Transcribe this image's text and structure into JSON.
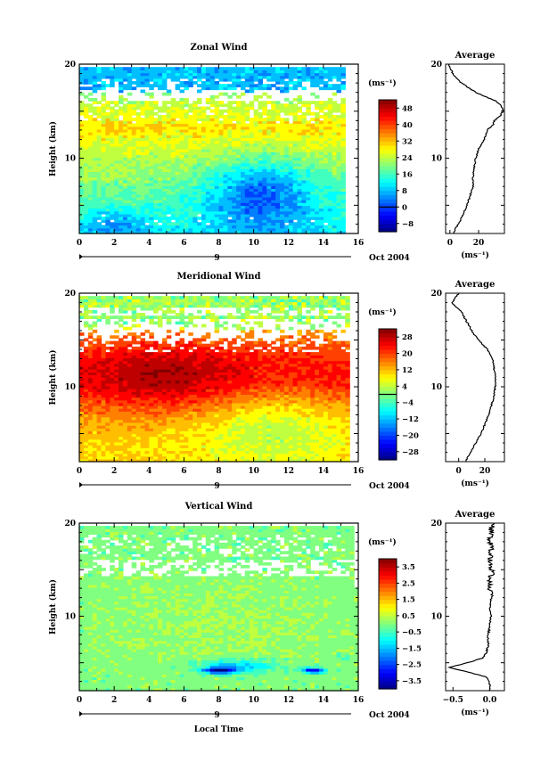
{
  "chart_data": [
    {
      "type": "heatmap",
      "title": "Zonal Wind",
      "xlabel": "",
      "ylabel": "Height (km)",
      "xlim": [
        0,
        16
      ],
      "ylim": [
        2,
        20
      ],
      "xticks": [
        0,
        2,
        4,
        6,
        8,
        10,
        12,
        14,
        16
      ],
      "yticks": [
        10,
        20
      ],
      "date_label": "Oct 2004",
      "date_day": "9",
      "colorbar": {
        "unit": "(ms⁻¹)",
        "levels": [
          -8,
          0,
          8,
          16,
          24,
          32,
          40,
          48
        ],
        "range": [
          -12,
          52
        ],
        "contour_level": 0
      },
      "profile": {
        "title": "Average",
        "xlabel": "(ms⁻¹)",
        "xlim": [
          -3,
          38
        ],
        "xticks": [
          0,
          20
        ],
        "height": [
          2,
          3,
          4,
          5,
          6,
          7,
          8,
          9,
          10,
          11,
          12,
          13,
          13.5,
          14,
          14.5,
          15,
          15.5,
          16,
          17,
          18,
          19,
          20
        ],
        "values": [
          2,
          6,
          9,
          12,
          14,
          16,
          16,
          17,
          18,
          20,
          24,
          26,
          30,
          31,
          35,
          37,
          36,
          33,
          18,
          8,
          2,
          -1
        ]
      }
    },
    {
      "type": "heatmap",
      "title": "Meridional Wind",
      "xlabel": "",
      "ylabel": "Height (km)",
      "xlim": [
        0,
        16
      ],
      "ylim": [
        2,
        20
      ],
      "xticks": [
        0,
        2,
        4,
        6,
        8,
        10,
        12,
        14,
        16
      ],
      "yticks": [
        10,
        20
      ],
      "date_label": "Oct 2004",
      "date_day": "9",
      "colorbar": {
        "unit": "(ms⁻¹)",
        "levels": [
          -28,
          -20,
          -12,
          -4,
          4,
          12,
          20,
          28
        ],
        "range": [
          -32,
          32
        ],
        "contour_level": 0
      },
      "profile": {
        "title": "Average",
        "xlabel": "(ms⁻¹)",
        "xlim": [
          -10,
          35
        ],
        "xticks": [
          0,
          20
        ],
        "height": [
          2,
          3,
          4,
          5,
          6,
          7,
          8,
          9,
          10,
          11,
          12,
          13,
          14,
          15,
          16,
          17,
          18,
          19,
          20
        ],
        "values": [
          5,
          9,
          13,
          17,
          20,
          23,
          25,
          27,
          28,
          28,
          27,
          26,
          22,
          15,
          10,
          6,
          2,
          -5,
          0
        ]
      }
    },
    {
      "type": "heatmap",
      "title": "Vertical Wind",
      "xlabel": "Local Time",
      "ylabel": "Height (km)",
      "xlim": [
        0,
        16
      ],
      "ylim": [
        2,
        20
      ],
      "xticks": [
        0,
        2,
        4,
        6,
        8,
        10,
        12,
        14,
        16
      ],
      "yticks": [
        10,
        20
      ],
      "date_label": "Oct 2004",
      "date_day": "9",
      "colorbar": {
        "unit": "(ms⁻¹)",
        "levels": [
          -3.5,
          -2.5,
          -1.5,
          -0.5,
          0.5,
          1.5,
          2.5,
          3.5
        ],
        "range": [
          -4,
          4
        ],
        "contour_level": null
      },
      "profile": {
        "title": "Average",
        "xlabel": "(ms⁻¹)",
        "xlim": [
          -0.6,
          0.2
        ],
        "xticks": [
          -0.5,
          0
        ],
        "xticklabels": [
          "−0.5",
          "0.0"
        ],
        "height": [
          2,
          3,
          3.5,
          4,
          4.5,
          5,
          5.5,
          6,
          7,
          8,
          9,
          10,
          11,
          12,
          13,
          14,
          15,
          16,
          17,
          18,
          19,
          20
        ],
        "values": [
          0.0,
          0.0,
          -0.05,
          -0.3,
          -0.55,
          -0.3,
          -0.1,
          -0.05,
          -0.02,
          -0.02,
          0.0,
          0.02,
          0.0,
          0.02,
          0.0,
          0.01,
          0.03,
          0.0,
          0.02,
          0.01,
          0.02,
          0.03
        ]
      }
    }
  ]
}
